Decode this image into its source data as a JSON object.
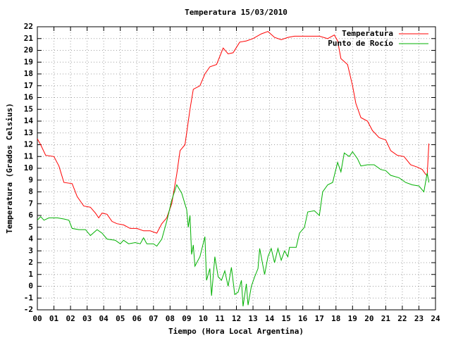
{
  "chart_data": {
    "type": "line",
    "title": "Temperatura 15/03/2010",
    "x_label": "Tiempo (Hora Local Argentina)",
    "y_label": "Temperatura (Grados Celsius)",
    "xlim": [
      0,
      24
    ],
    "ylim": [
      -2,
      22
    ],
    "grid": true,
    "legend": "top-right",
    "xticks": [
      {
        "value": 0,
        "label": "00"
      },
      {
        "value": 1,
        "label": "01"
      },
      {
        "value": 2,
        "label": "02"
      },
      {
        "value": 3,
        "label": "03"
      },
      {
        "value": 4,
        "label": "04"
      },
      {
        "value": 5,
        "label": "05"
      },
      {
        "value": 6,
        "label": "06"
      },
      {
        "value": 7,
        "label": "07"
      },
      {
        "value": 8,
        "label": "08"
      },
      {
        "value": 9,
        "label": "09"
      },
      10,
      11,
      12,
      13,
      14,
      15,
      16,
      17,
      18,
      19,
      20,
      21,
      22,
      23,
      24
    ],
    "yticks": [
      -2,
      -1,
      0,
      1,
      2,
      3,
      4,
      5,
      6,
      7,
      8,
      9,
      10,
      11,
      12,
      13,
      14,
      15,
      16,
      17,
      18,
      19,
      20,
      21,
      22
    ],
    "series": [
      {
        "name": "Temperatura",
        "color": "#ff0000",
        "x": [
          0,
          0.2,
          0.5,
          1.0,
          1.3,
          1.6,
          2.1,
          2.4,
          2.8,
          3.2,
          3.5,
          3.7,
          3.9,
          4.2,
          4.5,
          4.8,
          5.2,
          5.6,
          6.0,
          6.4,
          6.8,
          7.2,
          7.5,
          7.8,
          8.1,
          8.4,
          8.6,
          8.9,
          9.2,
          9.4,
          9.8,
          10.1,
          10.4,
          10.8,
          11.2,
          11.5,
          11.8,
          12.2,
          12.6,
          13.0,
          13.5,
          13.9,
          14.3,
          14.7,
          15.1,
          15.5,
          16.0,
          16.5,
          17.0,
          17.5,
          17.9,
          18.1,
          18.3,
          18.7,
          19.0,
          19.2,
          19.5,
          19.9,
          20.2,
          20.6,
          21.0,
          21.3,
          21.7,
          22.1,
          22.5,
          22.9,
          23.2,
          23.4,
          23.5,
          23.6
        ],
        "values": [
          12.5,
          12,
          11.1,
          11.0,
          10.2,
          8.8,
          8.7,
          7.6,
          6.8,
          6.7,
          6.2,
          5.8,
          6.2,
          6.1,
          5.5,
          5.3,
          5.2,
          4.9,
          4.9,
          4.7,
          4.7,
          4.5,
          5.3,
          5.8,
          7.0,
          9.5,
          11.5,
          12.0,
          15.0,
          16.7,
          17.0,
          18.0,
          18.6,
          18.8,
          20.2,
          19.7,
          19.8,
          20.7,
          20.8,
          21.0,
          21.4,
          21.6,
          21.1,
          20.9,
          21.1,
          21.2,
          21.2,
          21.2,
          21.2,
          21.0,
          21.3,
          20.8,
          19.3,
          18.8,
          17.0,
          15.5,
          14.3,
          14.0,
          13.2,
          12.6,
          12.4,
          11.5,
          11.1,
          11.0,
          10.3,
          10.1,
          9.9,
          9.5,
          9.4,
          12.1
        ]
      },
      {
        "name": "Punto de Rocío",
        "color": "#00b000",
        "x": [
          0,
          0.2,
          0.4,
          0.7,
          1.2,
          1.6,
          1.9,
          2.1,
          2.5,
          2.9,
          3.2,
          3.6,
          3.9,
          4.2,
          4.7,
          5.0,
          5.2,
          5.5,
          5.9,
          6.2,
          6.4,
          6.6,
          7.0,
          7.2,
          7.5,
          7.8,
          8.1,
          8.4,
          8.7,
          9.0,
          9.1,
          9.2,
          9.3,
          9.4,
          9.5,
          9.8,
          10.1,
          10.2,
          10.4,
          10.5,
          10.7,
          10.9,
          11.1,
          11.3,
          11.5,
          11.7,
          11.9,
          12.1,
          12.3,
          12.4,
          12.6,
          12.7,
          12.9,
          13.1,
          13.3,
          13.4,
          13.7,
          13.9,
          14.1,
          14.3,
          14.5,
          14.7,
          14.9,
          15.1,
          15.2,
          15.6,
          15.8,
          16.1,
          16.3,
          16.7,
          17.0,
          17.2,
          17.5,
          17.8,
          18.1,
          18.3,
          18.5,
          18.8,
          19.0,
          19.3,
          19.5,
          19.9,
          20.3,
          20.7,
          21.0,
          21.3,
          21.8,
          22.2,
          22.6,
          23.0,
          23.3,
          23.5,
          23.6
        ],
        "values": [
          5.6,
          5.9,
          5.6,
          5.8,
          5.8,
          5.7,
          5.6,
          4.9,
          4.8,
          4.8,
          4.3,
          4.8,
          4.5,
          4.0,
          3.9,
          3.6,
          3.9,
          3.6,
          3.7,
          3.6,
          4.1,
          3.6,
          3.6,
          3.4,
          4.0,
          5.5,
          7.3,
          8.6,
          7.9,
          6.5,
          5.0,
          6.0,
          2.7,
          3.5,
          1.7,
          2.5,
          4.2,
          0.5,
          1.5,
          -0.8,
          2.5,
          0.8,
          0.5,
          1.3,
          0.0,
          1.6,
          -0.7,
          -0.5,
          0.5,
          -1.7,
          0.2,
          -1.6,
          0.0,
          0.8,
          1.5,
          3.2,
          1.0,
          2.5,
          3.2,
          2.0,
          3.2,
          2.2,
          3.0,
          2.5,
          3.3,
          3.3,
          4.5,
          5.0,
          6.3,
          6.4,
          6.0,
          8.0,
          8.6,
          8.8,
          10.5,
          9.7,
          11.3,
          11.0,
          11.4,
          10.8,
          10.2,
          10.3,
          10.3,
          9.9,
          9.8,
          9.4,
          9.2,
          8.8,
          8.6,
          8.5,
          8.0,
          9.6,
          8.8
        ]
      }
    ]
  }
}
